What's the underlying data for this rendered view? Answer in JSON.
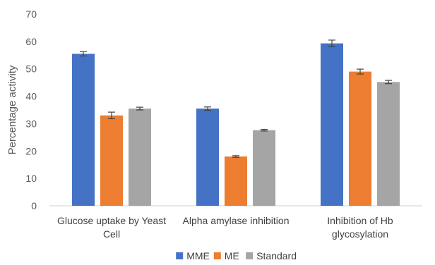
{
  "chart_data": {
    "type": "bar",
    "title": "",
    "xlabel": "",
    "ylabel": "Percentage activity",
    "ylim": [
      0,
      70
    ],
    "yticks": [
      0,
      10,
      20,
      30,
      40,
      50,
      60,
      70
    ],
    "grid": false,
    "legend_position": "bottom",
    "categories": [
      [
        "Glucose uptake by Yeast",
        "Cell"
      ],
      [
        "Alpha amylase inhibition"
      ],
      [
        "Inhibition of Hb",
        "glycosylation"
      ]
    ],
    "series": [
      {
        "name": "MME",
        "color": "#4472C4",
        "values": [
          55.5,
          35.5,
          59.3
        ],
        "errors": [
          0.8,
          0.6,
          1.2
        ]
      },
      {
        "name": "ME",
        "color": "#ED7D31",
        "values": [
          33.0,
          18.0,
          49.0
        ],
        "errors": [
          1.2,
          0.3,
          0.9
        ]
      },
      {
        "name": "Standard",
        "color": "#A5A5A5",
        "values": [
          35.5,
          27.6,
          45.2
        ],
        "errors": [
          0.5,
          0.3,
          0.6
        ]
      }
    ]
  }
}
